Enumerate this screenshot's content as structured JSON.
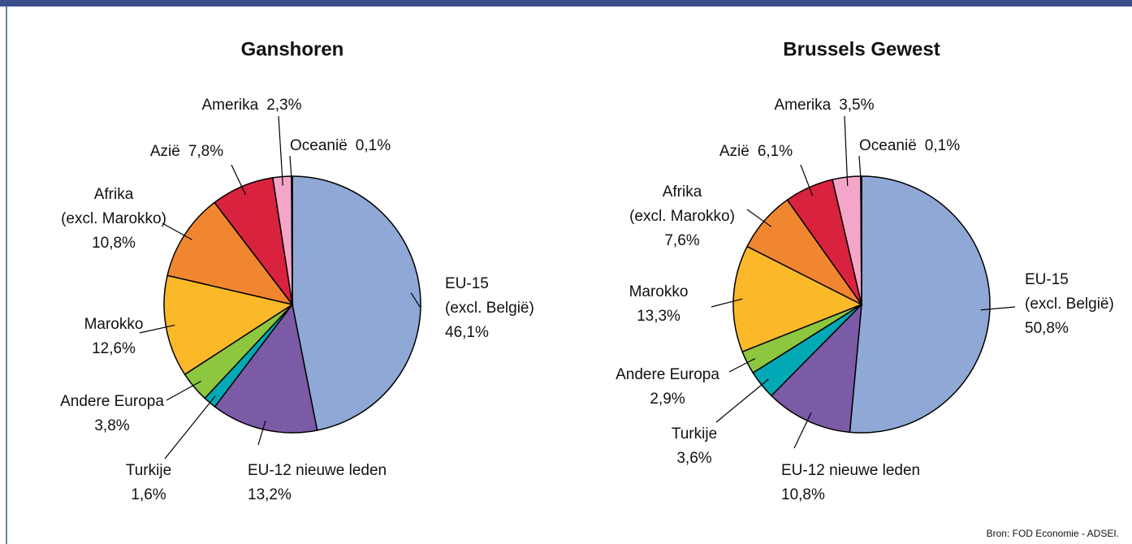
{
  "chart_data": [
    {
      "type": "pie",
      "title": "Ganshoren",
      "categories": [
        [
          "EU-15",
          "(excl. België)"
        ],
        [
          "EU-12 nieuwe leden"
        ],
        [
          "Turkije"
        ],
        [
          "Andere Europa"
        ],
        [
          "Marokko"
        ],
        [
          "Afrika",
          "(excl. Marokko)"
        ],
        [
          "Azië"
        ],
        [
          "Amerika"
        ],
        [
          "Oceanië"
        ]
      ],
      "values": [
        46.1,
        13.2,
        1.6,
        3.8,
        12.6,
        10.8,
        7.8,
        2.3,
        0.1
      ],
      "value_labels": [
        "46,1%",
        "13,2%",
        "1,6%",
        "3,8%",
        "12,6%",
        "10,8%",
        "7,8%",
        "2,3%",
        "0,1%"
      ],
      "colors": [
        "#8fa8d6",
        "#7b5ba6",
        "#00a9b5",
        "#8dc63f",
        "#fbb829",
        "#f08730",
        "#d9223e",
        "#f4a6c8",
        "#5a1a1a"
      ]
    },
    {
      "type": "pie",
      "title": "Brussels Gewest",
      "categories": [
        [
          "EU-15",
          "(excl. België)"
        ],
        [
          "EU-12 nieuwe leden"
        ],
        [
          "Turkije"
        ],
        [
          "Andere Europa"
        ],
        [
          "Marokko"
        ],
        [
          "Afrika",
          "(excl. Marokko)"
        ],
        [
          "Azië"
        ],
        [
          "Amerika"
        ],
        [
          "Oceanië"
        ]
      ],
      "values": [
        50.8,
        10.8,
        3.6,
        2.9,
        13.3,
        7.6,
        6.1,
        3.5,
        0.1
      ],
      "value_labels": [
        "50,8%",
        "10,8%",
        "3,6%",
        "2,9%",
        "13,3%",
        "7,6%",
        "6,1%",
        "3,5%",
        "0,1%"
      ],
      "colors": [
        "#8fa8d6",
        "#7b5ba6",
        "#00a9b5",
        "#8dc63f",
        "#fbb829",
        "#f08730",
        "#d9223e",
        "#f4a6c8",
        "#5a1a1a"
      ]
    }
  ],
  "source": "Bron: FOD Economie - ADSEI."
}
